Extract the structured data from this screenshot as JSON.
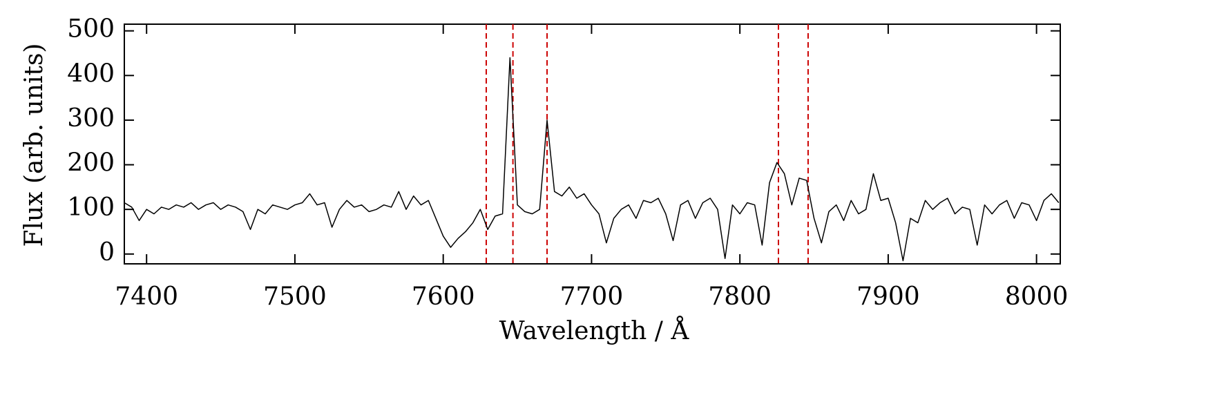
{
  "chart_data": {
    "type": "line",
    "xlabel": "Wavelength / Å",
    "ylabel": "Flux (arb. units)",
    "xlim": [
      7385,
      8016
    ],
    "ylim": [
      -22,
      515
    ],
    "xticks": [
      7400,
      7500,
      7600,
      7700,
      7800,
      7900,
      8000
    ],
    "yticks": [
      0,
      100,
      200,
      300,
      400,
      500
    ],
    "vlines": [
      7629,
      7647,
      7670,
      7826,
      7846
    ],
    "vline_color": "#cc0000",
    "series": [
      {
        "color": "#000000",
        "x": [
          7385,
          7390,
          7395,
          7400,
          7405,
          7410,
          7415,
          7420,
          7425,
          7430,
          7435,
          7440,
          7445,
          7450,
          7455,
          7460,
          7465,
          7470,
          7475,
          7480,
          7485,
          7490,
          7495,
          7500,
          7505,
          7510,
          7515,
          7520,
          7525,
          7530,
          7535,
          7540,
          7545,
          7550,
          7555,
          7560,
          7565,
          7570,
          7575,
          7580,
          7585,
          7590,
          7595,
          7600,
          7605,
          7610,
          7615,
          7620,
          7625,
          7630,
          7635,
          7640,
          7645,
          7650,
          7655,
          7660,
          7665,
          7670,
          7675,
          7680,
          7685,
          7690,
          7695,
          7700,
          7705,
          7710,
          7715,
          7720,
          7725,
          7730,
          7735,
          7740,
          7745,
          7750,
          7755,
          7760,
          7765,
          7770,
          7775,
          7780,
          7785,
          7790,
          7795,
          7800,
          7805,
          7810,
          7815,
          7820,
          7825,
          7830,
          7835,
          7840,
          7845,
          7850,
          7855,
          7860,
          7865,
          7870,
          7875,
          7880,
          7885,
          7890,
          7895,
          7900,
          7905,
          7910,
          7915,
          7920,
          7925,
          7930,
          7935,
          7940,
          7945,
          7950,
          7955,
          7960,
          7965,
          7970,
          7975,
          7980,
          7985,
          7990,
          7995,
          8000,
          8005,
          8010,
          8015
        ],
        "values": [
          115,
          105,
          75,
          100,
          90,
          105,
          100,
          110,
          105,
          115,
          100,
          110,
          115,
          100,
          110,
          105,
          95,
          55,
          100,
          90,
          110,
          105,
          100,
          110,
          115,
          135,
          110,
          115,
          60,
          100,
          120,
          105,
          110,
          95,
          100,
          110,
          105,
          140,
          100,
          130,
          110,
          120,
          80,
          40,
          15,
          35,
          50,
          70,
          100,
          55,
          85,
          90,
          440,
          110,
          95,
          90,
          100,
          300,
          140,
          130,
          150,
          125,
          135,
          110,
          90,
          25,
          80,
          100,
          110,
          80,
          120,
          115,
          125,
          90,
          30,
          110,
          120,
          80,
          115,
          125,
          100,
          -10,
          110,
          90,
          115,
          110,
          20,
          160,
          205,
          180,
          110,
          170,
          165,
          80,
          25,
          95,
          110,
          75,
          120,
          90,
          100,
          180,
          120,
          125,
          70,
          -15,
          80,
          70,
          120,
          100,
          115,
          125,
          90,
          105,
          100,
          20,
          110,
          90,
          110,
          120,
          80,
          115,
          110,
          75,
          120,
          135,
          115
        ]
      }
    ]
  }
}
